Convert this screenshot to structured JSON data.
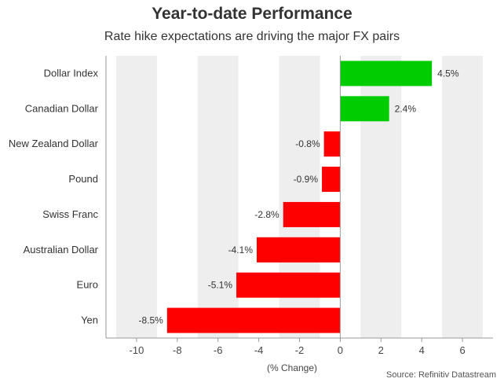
{
  "chart_data": {
    "type": "bar",
    "orientation": "horizontal",
    "title": "Year-to-date Performance",
    "subtitle": "Rate hike expectations are driving the major FX pairs",
    "xlabel": "(% Change)",
    "ylabel": "",
    "source": "Source: Refinitiv Datastream",
    "categories": [
      "Dollar Index",
      "Canadian Dollar",
      "New Zealand Dollar",
      "Pound",
      "Swiss Franc",
      "Australian Dollar",
      "Euro",
      "Yen"
    ],
    "values": [
      4.5,
      2.4,
      -0.8,
      -0.9,
      -2.8,
      -4.1,
      -5.1,
      -8.5
    ],
    "value_labels": [
      "4.5%",
      "2.4%",
      "-0.8%",
      "-0.9%",
      "-2.8%",
      "-4.1%",
      "-5.1%",
      "-8.5%"
    ],
    "xlim": [
      -11.5,
      7.5
    ],
    "xticks": [
      -10,
      -8,
      -6,
      -4,
      -2,
      0,
      2,
      4,
      6
    ],
    "grid": "alternating vertical bands",
    "legend": "none",
    "colors": {
      "positive": "#00cc00",
      "negative": "#ff0000",
      "band": "#eeeeee",
      "zero_line": "#999999",
      "axis": "#999999"
    }
  }
}
